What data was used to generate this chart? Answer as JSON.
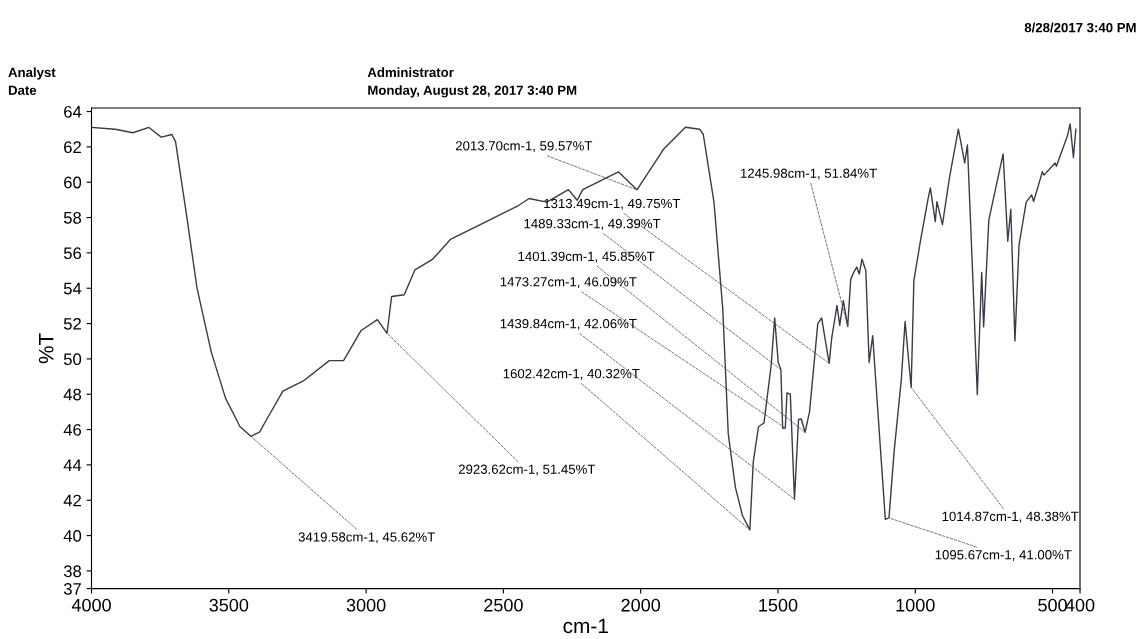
{
  "chart_data": {
    "type": "line",
    "xlabel": "cm-1",
    "ylabel": "%T",
    "color": "#3a3a48",
    "grid": false,
    "legend": false,
    "xlim": [
      4000,
      400
    ],
    "xticks": [
      4000,
      3500,
      3000,
      2500,
      2000,
      1500,
      1000,
      500,
      400
    ],
    "ylim": [
      37,
      64.2
    ],
    "yticks": [
      37,
      38,
      40,
      42,
      44,
      46,
      48,
      50,
      52,
      54,
      56,
      58,
      60,
      62,
      64
    ],
    "x": [
      3999,
      3914,
      3849,
      3791,
      3746,
      3707,
      3694,
      3655,
      3616,
      3564,
      3512,
      3459,
      3419.58,
      3388,
      3355,
      3303,
      3225,
      3134,
      3082,
      3018,
      2959,
      2923.62,
      2907,
      2861,
      2822,
      2757,
      2693,
      2575,
      2445,
      2406,
      2342,
      2263,
      2231,
      2211,
      2081,
      2013.7,
      1915,
      1837,
      1785,
      1772,
      1733,
      1701,
      1681,
      1655,
      1629,
      1602.42,
      1590,
      1571,
      1551,
      1525,
      1512,
      1499,
      1489.33,
      1483,
      1473.27,
      1467,
      1455,
      1439.84,
      1425,
      1415,
      1401.39,
      1385,
      1355,
      1341,
      1313.49,
      1304,
      1285,
      1275,
      1262,
      1245.98,
      1235,
      1224,
      1213,
      1204,
      1194,
      1180,
      1168,
      1155,
      1135,
      1109,
      1095.67,
      1077,
      1051,
      1037,
      1014.87,
      1005,
      979,
      953,
      945,
      927,
      921,
      901,
      875,
      843,
      820,
      810,
      791,
      774,
      758,
      751,
      732,
      680,
      663,
      652,
      637,
      622,
      596,
      576,
      569,
      537,
      531,
      491,
      486,
      446,
      436,
      424,
      415
    ],
    "values": [
      63.1,
      63.0,
      62.8,
      63.1,
      62.55,
      62.7,
      62.3,
      58.27,
      54.03,
      50.4,
      47.78,
      46.16,
      45.62,
      45.86,
      46.77,
      48.18,
      48.79,
      49.9,
      49.9,
      51.61,
      52.22,
      51.45,
      53.53,
      53.63,
      55.04,
      55.65,
      56.76,
      57.67,
      58.68,
      59.08,
      58.87,
      59.58,
      58.98,
      59.58,
      60.59,
      59.57,
      61.9,
      63.11,
      63.0,
      62.7,
      58.87,
      52.82,
      45.76,
      42.73,
      41.12,
      40.32,
      44.15,
      46.16,
      46.37,
      49.6,
      52.32,
      49.8,
      49.39,
      46.07,
      46.09,
      48.08,
      48.0,
      42.06,
      46.57,
      46.6,
      45.85,
      47.0,
      52.0,
      52.32,
      49.75,
      51.21,
      53.03,
      51.9,
      53.3,
      51.84,
      54.5,
      54.9,
      55.2,
      54.8,
      55.65,
      55.0,
      49.8,
      51.31,
      46.77,
      40.92,
      41.0,
      44.75,
      48.79,
      52.12,
      48.38,
      54.44,
      56.86,
      59.08,
      59.68,
      57.77,
      58.9,
      57.6,
      60.29,
      63.0,
      61.09,
      62.11,
      54.84,
      47.98,
      54.9,
      51.81,
      57.87,
      61.6,
      56.66,
      58.47,
      51.01,
      56.46,
      58.87,
      59.28,
      58.9,
      60.59,
      60.4,
      61.09,
      60.9,
      62.61,
      63.3,
      61.4,
      63.0
    ],
    "annotations": [
      "Analyst",
      "Date",
      "Administrator",
      "Monday, August 28, 2017 3:40 PM",
      "8/28/2017 3:40 PM",
      {
        "text": "2013.70cm-1, 59.57%T",
        "x": 2013.7,
        "y": 59.57
      },
      {
        "text": "1313.49cm-1, 49.75%T",
        "x": 1313.49,
        "y": 49.75
      },
      {
        "text": "1245.98cm-1, 51.84%T",
        "x": 1245.98,
        "y": 51.84
      },
      {
        "text": "1489.33cm-1, 49.39%T",
        "x": 1489.33,
        "y": 49.39
      },
      {
        "text": "1401.39cm-1, 45.85%T",
        "x": 1401.39,
        "y": 45.85
      },
      {
        "text": "1473.27cm-1, 46.09%T",
        "x": 1473.27,
        "y": 46.09
      },
      {
        "text": "1439.84cm-1, 42.06%T",
        "x": 1439.84,
        "y": 42.06
      },
      {
        "text": "1602.42cm-1, 40.32%T",
        "x": 1602.42,
        "y": 40.32
      },
      {
        "text": "2923.62cm-1, 51.45%T",
        "x": 2923.62,
        "y": 51.45
      },
      {
        "text": "3419.58cm-1, 45.62%T",
        "x": 3419.58,
        "y": 45.62
      },
      {
        "text": "1014.87cm-1, 48.38%T",
        "x": 1014.87,
        "y": 48.38
      },
      {
        "text": "1095.67cm-1, 41.00%T",
        "x": 1095.67,
        "y": 41.0
      }
    ]
  }
}
